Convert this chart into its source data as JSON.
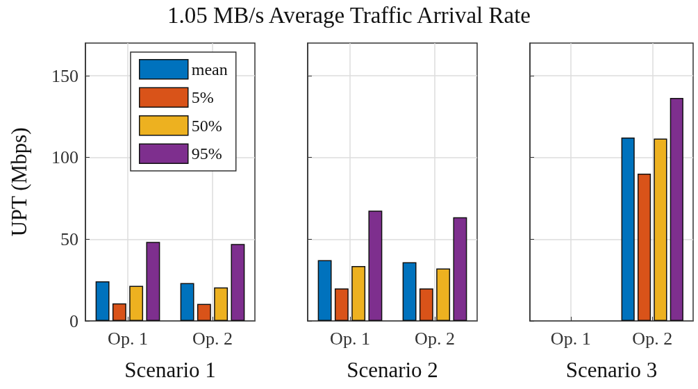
{
  "chart_data": [
    {
      "type": "bar",
      "title": "1.05 MB/s Average Traffic Arrival Rate",
      "xlabel": "Scenario 1",
      "ylabel": "UPT (Mbps)",
      "categories": [
        "Op. 1",
        "Op. 2"
      ],
      "series": [
        {
          "name": "mean",
          "color": "#0072bd",
          "values": [
            24.2,
            23.2
          ]
        },
        {
          "name": "5%",
          "color": "#d95319",
          "values": [
            10.7,
            10.4
          ]
        },
        {
          "name": "50%",
          "color": "#edb120",
          "values": [
            21.5,
            20.5
          ]
        },
        {
          "name": "95%",
          "color": "#7e2f8e",
          "values": [
            48.3,
            47.1
          ]
        }
      ],
      "ylim": [
        0,
        170
      ],
      "yticks": [
        0,
        50,
        100,
        150
      ],
      "grid": true,
      "legend": "top"
    },
    {
      "type": "bar",
      "xlabel": "Scenario 2",
      "categories": [
        "Op. 1",
        "Op. 2"
      ],
      "series": [
        {
          "color": "#0072bd",
          "values": [
            37.2,
            35.9
          ]
        },
        {
          "color": "#d95319",
          "values": [
            19.9,
            19.9
          ]
        },
        {
          "color": "#edb120",
          "values": [
            33.6,
            32.1
          ]
        },
        {
          "color": "#7e2f8e",
          "values": [
            67.5,
            63.4
          ]
        }
      ],
      "ylim": [
        0,
        170
      ],
      "yticks": [
        0,
        50,
        100,
        150
      ],
      "grid": true,
      "tick_labels": "x"
    },
    {
      "type": "bar",
      "xlabel": "Scenario 3",
      "categories": [
        "Op. 1",
        "Op. 2"
      ],
      "series": [
        {
          "color": "#0072bd",
          "values": [
            0,
            112.2
          ]
        },
        {
          "color": "#d95319",
          "values": [
            0,
            90.1
          ]
        },
        {
          "color": "#edb120",
          "values": [
            0,
            111.6
          ]
        },
        {
          "color": "#7e2f8e",
          "values": [
            0,
            136.4
          ]
        }
      ],
      "ylim": [
        0,
        170
      ],
      "yticks": [
        0,
        50,
        100,
        150
      ],
      "grid": true,
      "tick_labels": "x"
    }
  ]
}
